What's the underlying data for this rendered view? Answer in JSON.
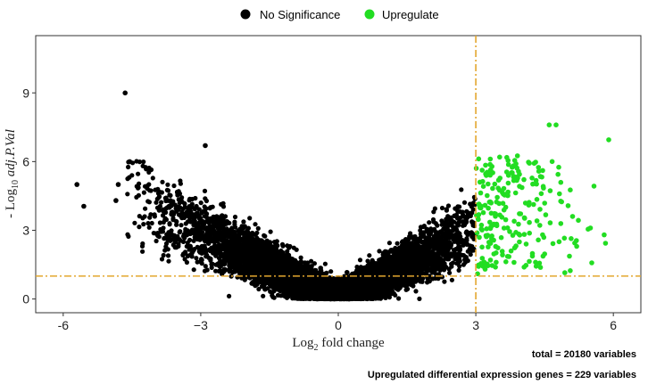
{
  "chart_data": {
    "type": "scatter",
    "title": "",
    "xlabel": "Log",
    "xlabel_sub": "2",
    "xlabel_rest": " fold change",
    "ylabel": "- Log",
    "ylabel_sub": "10",
    "ylabel_rest": " adj.P.Val",
    "xlim": [
      -6.6,
      6.6
    ],
    "ylim": [
      -0.6,
      11.5
    ],
    "x_ticks": [
      -6,
      -3,
      0,
      3,
      6
    ],
    "x_tick_labels": [
      "-6",
      "−3",
      "0",
      "3",
      "6"
    ],
    "y_ticks": [
      0,
      3,
      6,
      9
    ],
    "y_tick_labels": [
      "0",
      "3",
      "6",
      "9"
    ],
    "threshold_x": 3,
    "threshold_y": 1,
    "threshold_color": "#E3A72F",
    "series": [
      {
        "name": "No Significance",
        "color": "#000000"
      },
      {
        "name": "Upregulate",
        "color": "#22DD22"
      }
    ],
    "highlighted_points": [
      {
        "x": -4.65,
        "y": 9.0
      },
      {
        "x": -4.55,
        "y": 6.0
      },
      {
        "x": -5.7,
        "y": 5.0
      },
      {
        "x": -5.55,
        "y": 4.05
      },
      {
        "x": -4.8,
        "y": 5.0
      },
      {
        "x": -4.85,
        "y": 4.3
      },
      {
        "x": -2.9,
        "y": 6.7
      },
      {
        "x": 4.6,
        "y": 7.6
      },
      {
        "x": 4.75,
        "y": 7.6
      },
      {
        "x": 5.9,
        "y": 6.95
      },
      {
        "x": 5.45,
        "y": 3.05
      },
      {
        "x": 5.5,
        "y": 3.1
      },
      {
        "x": 5.2,
        "y": 2.3
      },
      {
        "x": 5.8,
        "y": 2.8
      }
    ],
    "total_note": "total = 20180 variables",
    "upregulated_note": "Upregulated differential expression genes = 229 variables"
  }
}
